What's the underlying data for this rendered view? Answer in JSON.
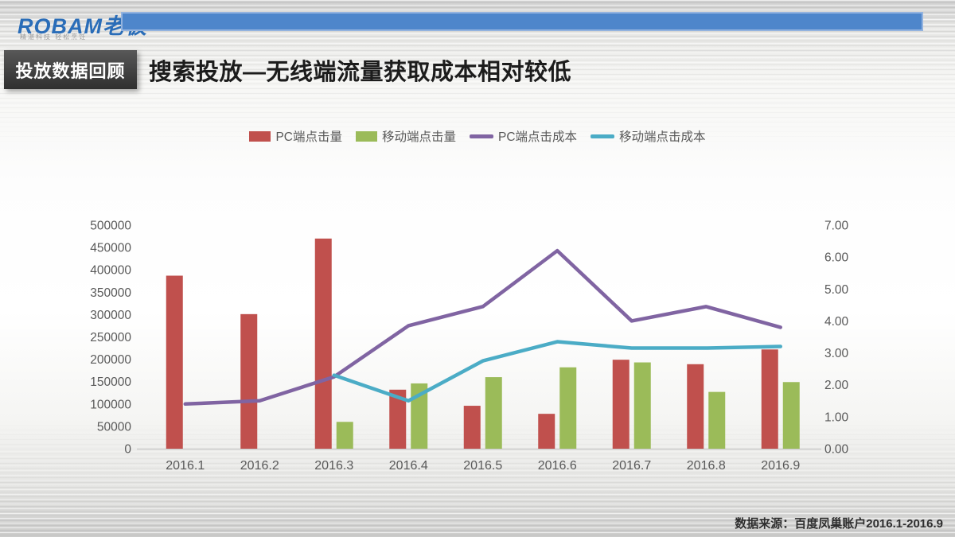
{
  "brand": {
    "logo_text": "ROBAM老板",
    "tagline": "精湛科技 轻松烹饪",
    "logo_color": "#2a6db8",
    "bar_color": "#4e86cb"
  },
  "header": {
    "badge": "投放数据回顾",
    "title": "搜索投放—无线端流量获取成本相对较低"
  },
  "footer": {
    "source": "数据来源：百度凤巢账户2016.1-2016.9"
  },
  "chart_data": {
    "type": "bar",
    "subtype": "combo-bar-line",
    "categories": [
      "2016.1",
      "2016.2",
      "2016.3",
      "2016.4",
      "2016.5",
      "2016.6",
      "2016.7",
      "2016.8",
      "2016.9"
    ],
    "series": [
      {
        "name": "PC端点击量",
        "kind": "bar",
        "axis": "left",
        "color": "#c0504d",
        "values": [
          387000,
          301000,
          470000,
          132000,
          96000,
          78000,
          199000,
          189000,
          222000
        ]
      },
      {
        "name": "移动端点击量",
        "kind": "bar",
        "axis": "left",
        "color": "#9bbb59",
        "values": [
          null,
          null,
          60000,
          146000,
          160000,
          182000,
          193000,
          127000,
          149000
        ]
      },
      {
        "name": "PC端点击成本",
        "kind": "line",
        "axis": "right",
        "color": "#8064a2",
        "values": [
          1.4,
          1.5,
          2.25,
          3.85,
          4.45,
          6.2,
          4.0,
          4.45,
          3.8
        ]
      },
      {
        "name": "移动端点击成本",
        "kind": "line",
        "axis": "right",
        "color": "#4bacc6",
        "values": [
          null,
          null,
          2.3,
          1.5,
          2.75,
          3.35,
          3.15,
          3.15,
          3.2
        ]
      }
    ],
    "left_axis": {
      "min": 0,
      "max": 500000,
      "step": 50000
    },
    "right_axis": {
      "min": 0,
      "max": 7,
      "step": 1,
      "decimals": 2
    },
    "grid": false,
    "legend_position": "top"
  }
}
